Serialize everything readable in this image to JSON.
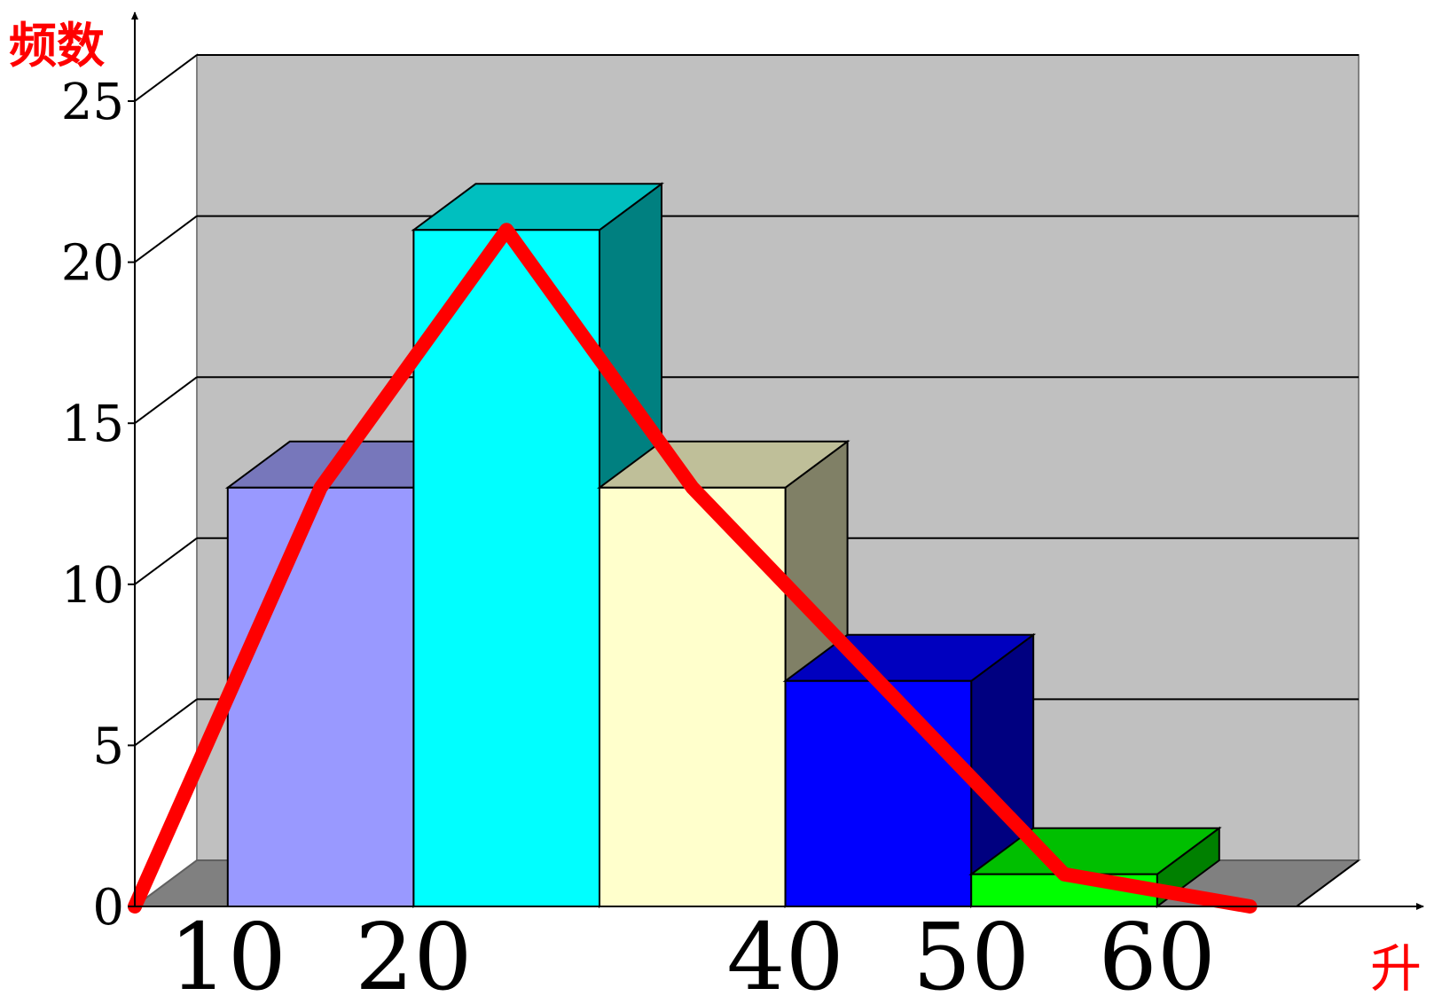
{
  "chart_data": {
    "type": "bar",
    "subtype": "3d-histogram-with-frequency-polygon",
    "y_axis_label": "频数",
    "x_axis_label": "升",
    "ylim": [
      0,
      25
    ],
    "y_ticks": [
      "0",
      "5",
      "10",
      "15",
      "20",
      "25"
    ],
    "x_tick_labels": [
      {
        "label": "10",
        "value": 10
      },
      {
        "label": "20",
        "value": 20
      },
      {
        "label": "40",
        "value": 40
      },
      {
        "label": "50",
        "value": 50
      },
      {
        "label": "60",
        "value": 60
      }
    ],
    "grid": true,
    "bins": [
      {
        "from": 10,
        "to": 20,
        "value": 13,
        "colors": {
          "front": "#9999ff",
          "top": "#7777bb",
          "side": "#5555aa"
        }
      },
      {
        "from": 20,
        "to": 30,
        "value": 21,
        "colors": {
          "front": "#00ffff",
          "top": "#00bfbf",
          "side": "#008080"
        }
      },
      {
        "from": 30,
        "to": 40,
        "value": 13,
        "colors": {
          "front": "#ffffcc",
          "top": "#bfbf99",
          "side": "#808066"
        }
      },
      {
        "from": 40,
        "to": 50,
        "value": 7,
        "colors": {
          "front": "#0000ff",
          "top": "#0000bf",
          "side": "#000080"
        }
      },
      {
        "from": 50,
        "to": 60,
        "value": 1,
        "colors": {
          "front": "#00ff00",
          "top": "#00bf00",
          "side": "#008000"
        }
      }
    ],
    "polygon": {
      "color": "#ff0000",
      "points": [
        {
          "x": 5,
          "y": 0
        },
        {
          "x": 15,
          "y": 13
        },
        {
          "x": 25,
          "y": 21
        },
        {
          "x": 35,
          "y": 13
        },
        {
          "x": 45,
          "y": 7
        },
        {
          "x": 55,
          "y": 1
        },
        {
          "x": 65,
          "y": 0
        }
      ]
    },
    "colors": {
      "back_wall": "#c0c0c0",
      "floor": "#808080",
      "axis_label": "#ff0000",
      "axis": "#000000"
    }
  }
}
